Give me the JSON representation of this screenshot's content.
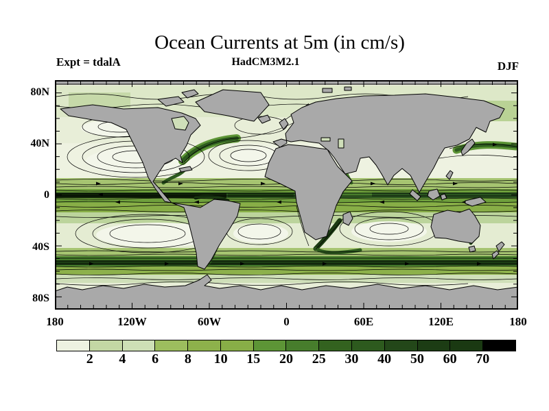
{
  "chart_data": {
    "type": "heatmap",
    "title": "Ocean Currents at 5m (in cm/s)",
    "model": "HadCM3M2.1",
    "experiment": "Expt = tdalA",
    "season": "DJF",
    "units": "cm/s",
    "x_axis": {
      "ticks": [
        "180",
        "120W",
        "60W",
        "0",
        "60E",
        "120E",
        "180"
      ]
    },
    "y_axis": {
      "ticks": [
        "80N",
        "40N",
        "0",
        "40S",
        "80S"
      ]
    },
    "colorbar": {
      "levels": [
        "2",
        "4",
        "6",
        "8",
        "10",
        "15",
        "20",
        "25",
        "30",
        "40",
        "50",
        "60",
        "70"
      ],
      "colors": [
        "#eef2e1",
        "#c3d7a4",
        "#cddfb6",
        "#9cbd5e",
        "#8db14b",
        "#88ae47",
        "#5d9536",
        "#477d2c",
        "#33621f",
        "#2d5a1e",
        "#234719",
        "#1c3c14",
        "#1a3912",
        "#000000"
      ]
    },
    "map": {
      "land_color": "#a9a9a9",
      "ocean_color": "#eef2e1",
      "coastline_color": "#000000",
      "projection": "equirectangular",
      "lon_range": [
        -180,
        180
      ],
      "lat_range": [
        -90,
        90
      ]
    },
    "description": "Streamlines of ocean surface currents over filled contours of speed; darkest shading along the equatorial Pacific/Atlantic and the Antarctic Circumpolar Current"
  }
}
